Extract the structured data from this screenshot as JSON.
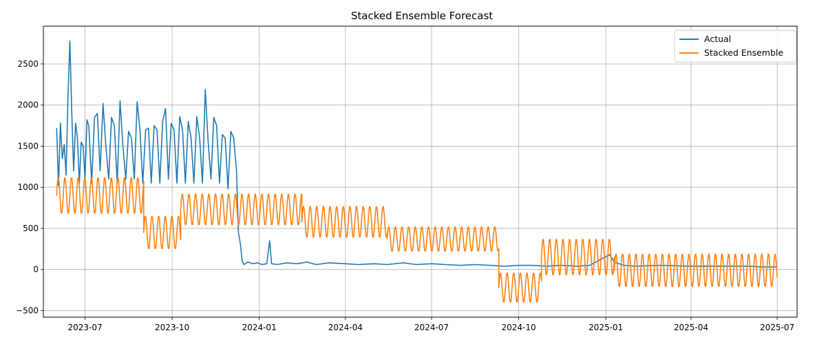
{
  "chart_data": {
    "type": "line",
    "title": "Stacked Ensemble Forecast",
    "xlabel": "",
    "ylabel": "",
    "grid": true,
    "legend_position": "top-right",
    "x_axis": {
      "type": "date",
      "range": [
        "2023-05-18",
        "2025-07-22"
      ],
      "ticks": [
        "2023-07-01",
        "2023-10-01",
        "2024-01-01",
        "2024-04-01",
        "2024-07-01",
        "2024-10-01",
        "2025-01-01",
        "2025-04-01",
        "2025-07-01"
      ],
      "tick_labels": [
        "2023-07",
        "2023-10",
        "2024-01",
        "2024-04",
        "2024-07",
        "2024-10",
        "2025-01",
        "2025-04",
        "2025-07"
      ]
    },
    "y_axis": {
      "range": [
        -580,
        2960
      ],
      "ticks": [
        -500,
        0,
        500,
        1000,
        1500,
        2000,
        2500
      ],
      "tick_labels": [
        "−500",
        "0",
        "500",
        "1000",
        "1500",
        "2000",
        "2500"
      ]
    },
    "series": [
      {
        "name": "Actual",
        "color": "#1f77b4",
        "points": [
          [
            "2023-06-01",
            1720
          ],
          [
            "2023-06-03",
            1020
          ],
          [
            "2023-06-05",
            1780
          ],
          [
            "2023-06-07",
            1350
          ],
          [
            "2023-06-09",
            1520
          ],
          [
            "2023-06-11",
            1150
          ],
          [
            "2023-06-13",
            2100
          ],
          [
            "2023-06-15",
            2780
          ],
          [
            "2023-06-17",
            1900
          ],
          [
            "2023-06-19",
            1200
          ],
          [
            "2023-06-21",
            1780
          ],
          [
            "2023-06-23",
            1600
          ],
          [
            "2023-06-25",
            1050
          ],
          [
            "2023-06-27",
            1550
          ],
          [
            "2023-06-29",
            1500
          ],
          [
            "2023-07-01",
            1100
          ],
          [
            "2023-07-03",
            1820
          ],
          [
            "2023-07-05",
            1750
          ],
          [
            "2023-07-08",
            1050
          ],
          [
            "2023-07-11",
            1850
          ],
          [
            "2023-07-14",
            1900
          ],
          [
            "2023-07-17",
            1200
          ],
          [
            "2023-07-20",
            2020
          ],
          [
            "2023-07-23",
            1500
          ],
          [
            "2023-07-26",
            1100
          ],
          [
            "2023-07-29",
            1850
          ],
          [
            "2023-08-01",
            1750
          ],
          [
            "2023-08-04",
            1050
          ],
          [
            "2023-08-07",
            2050
          ],
          [
            "2023-08-10",
            1500
          ],
          [
            "2023-08-13",
            1100
          ],
          [
            "2023-08-16",
            1680
          ],
          [
            "2023-08-19",
            1600
          ],
          [
            "2023-08-22",
            1100
          ],
          [
            "2023-08-25",
            2040
          ],
          [
            "2023-08-28",
            1700
          ],
          [
            "2023-08-31",
            1050
          ],
          [
            "2023-09-03",
            1700
          ],
          [
            "2023-09-06",
            1720
          ],
          [
            "2023-09-09",
            1050
          ],
          [
            "2023-09-12",
            1750
          ],
          [
            "2023-09-15",
            1700
          ],
          [
            "2023-09-18",
            1050
          ],
          [
            "2023-09-21",
            1800
          ],
          [
            "2023-09-24",
            1960
          ],
          [
            "2023-09-27",
            1100
          ],
          [
            "2023-09-30",
            1780
          ],
          [
            "2023-10-03",
            1700
          ],
          [
            "2023-10-06",
            1050
          ],
          [
            "2023-10-09",
            1860
          ],
          [
            "2023-10-12",
            1700
          ],
          [
            "2023-10-15",
            1050
          ],
          [
            "2023-10-18",
            1800
          ],
          [
            "2023-10-21",
            1600
          ],
          [
            "2023-10-24",
            1050
          ],
          [
            "2023-10-27",
            1860
          ],
          [
            "2023-10-30",
            1600
          ],
          [
            "2023-11-02",
            1050
          ],
          [
            "2023-11-05",
            2190
          ],
          [
            "2023-11-08",
            1550
          ],
          [
            "2023-11-11",
            1100
          ],
          [
            "2023-11-14",
            1850
          ],
          [
            "2023-11-17",
            1750
          ],
          [
            "2023-11-20",
            1050
          ],
          [
            "2023-11-23",
            1640
          ],
          [
            "2023-11-26",
            1600
          ],
          [
            "2023-11-29",
            980
          ],
          [
            "2023-12-02",
            1680
          ],
          [
            "2023-12-05",
            1600
          ],
          [
            "2023-12-08",
            1200
          ],
          [
            "2023-12-10",
            450
          ],
          [
            "2023-12-12",
            320
          ],
          [
            "2023-12-14",
            100
          ],
          [
            "2023-12-16",
            60
          ],
          [
            "2023-12-20",
            90
          ],
          [
            "2023-12-25",
            70
          ],
          [
            "2023-12-30",
            80
          ],
          [
            "2024-01-04",
            60
          ],
          [
            "2024-01-09",
            70
          ],
          [
            "2024-01-12",
            350
          ],
          [
            "2024-01-14",
            70
          ],
          [
            "2024-01-20",
            60
          ],
          [
            "2024-01-30",
            80
          ],
          [
            "2024-02-10",
            70
          ],
          [
            "2024-02-20",
            90
          ],
          [
            "2024-03-01",
            60
          ],
          [
            "2024-03-15",
            80
          ],
          [
            "2024-04-01",
            70
          ],
          [
            "2024-04-15",
            60
          ],
          [
            "2024-05-01",
            70
          ],
          [
            "2024-05-15",
            60
          ],
          [
            "2024-06-01",
            80
          ],
          [
            "2024-06-15",
            60
          ],
          [
            "2024-07-01",
            70
          ],
          [
            "2024-07-15",
            60
          ],
          [
            "2024-08-01",
            50
          ],
          [
            "2024-08-15",
            60
          ],
          [
            "2024-09-01",
            50
          ],
          [
            "2024-09-15",
            40
          ],
          [
            "2024-10-01",
            50
          ],
          [
            "2024-10-15",
            50
          ],
          [
            "2024-11-01",
            40
          ],
          [
            "2024-11-15",
            50
          ],
          [
            "2024-12-01",
            40
          ],
          [
            "2024-12-15",
            50
          ],
          [
            "2025-01-05",
            180
          ],
          [
            "2025-01-10",
            90
          ],
          [
            "2025-01-20",
            50
          ],
          [
            "2025-02-01",
            40
          ],
          [
            "2025-03-01",
            50
          ],
          [
            "2025-04-01",
            40
          ],
          [
            "2025-05-01",
            40
          ],
          [
            "2025-06-01",
            40
          ],
          [
            "2025-06-15",
            30
          ],
          [
            "2025-07-01",
            30
          ]
        ]
      },
      {
        "name": "Stacked Ensemble",
        "color": "#ff7f0e",
        "segments": [
          {
            "start": "2023-06-01",
            "end": "2023-09-01",
            "center": 900,
            "amplitude": 220
          },
          {
            "start": "2023-09-01",
            "end": "2023-10-10",
            "center": 450,
            "amplitude": 200
          },
          {
            "start": "2023-10-10",
            "end": "2024-02-15",
            "center": 730,
            "amplitude": 190
          },
          {
            "start": "2024-02-15",
            "end": "2024-05-15",
            "center": 580,
            "amplitude": 190
          },
          {
            "start": "2024-05-15",
            "end": "2024-09-10",
            "center": 370,
            "amplitude": 150
          },
          {
            "start": "2024-09-10",
            "end": "2024-10-25",
            "center": -220,
            "amplitude": 180
          },
          {
            "start": "2024-10-25",
            "end": "2025-01-10",
            "center": 150,
            "amplitude": 220
          },
          {
            "start": "2025-01-10",
            "end": "2025-07-01",
            "center": -10,
            "amplitude": 200
          }
        ],
        "period_days": 7,
        "end_value": -100
      }
    ]
  }
}
